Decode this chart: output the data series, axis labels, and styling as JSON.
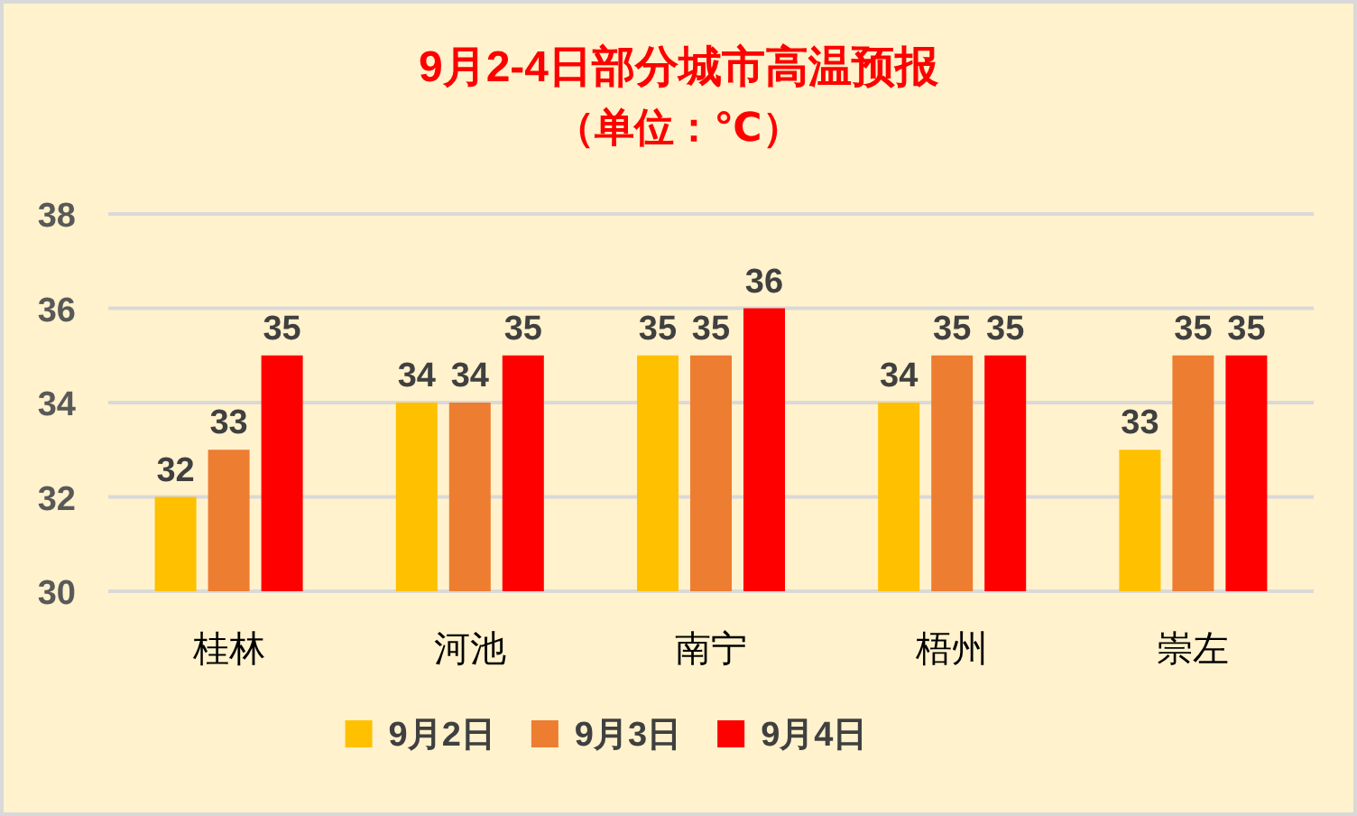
{
  "chart_data": {
    "type": "bar",
    "title": "9月2-4日部分城市高温预报",
    "subtitle": "（单位：℃）",
    "categories": [
      "桂林",
      "河池",
      "南宁",
      "梧州",
      "崇左"
    ],
    "series": [
      {
        "name": "9月2日",
        "color": "#ffc000",
        "values": [
          32,
          34,
          35,
          34,
          33
        ]
      },
      {
        "name": "9月3日",
        "color": "#ed7d31",
        "values": [
          33,
          34,
          35,
          35,
          35
        ]
      },
      {
        "name": "9月4日",
        "color": "#ff0000",
        "values": [
          35,
          35,
          36,
          35,
          35
        ]
      }
    ],
    "ylim": [
      30,
      38
    ],
    "yticks": [
      30,
      32,
      34,
      36,
      38
    ],
    "grid": "y",
    "legend": "bottom",
    "data_labels": true
  }
}
